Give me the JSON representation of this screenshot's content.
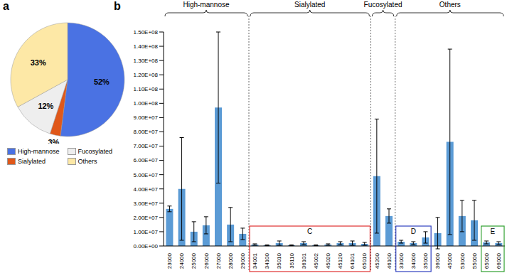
{
  "chart_data": [
    {
      "type": "pie",
      "panel_label": "a",
      "categories": [
        "High-mannose",
        "Sialylated",
        "Fucosylated",
        "Others"
      ],
      "values": [
        52,
        3,
        12,
        33
      ],
      "value_labels": [
        "52%",
        "3%",
        "12%",
        "33%"
      ],
      "colors": [
        "#4a72e3",
        "#e0581a",
        "#eeeeee",
        "#fde8a6"
      ],
      "data_labels": true,
      "legend": "bottom"
    },
    {
      "type": "bar",
      "panel_label": "b",
      "categories": [
        "23000",
        "24000",
        "25000",
        "26000",
        "27000",
        "28000",
        "29000",
        "34001",
        "34100",
        "35010",
        "35110",
        "36101",
        "45002",
        "45020",
        "45120",
        "64101",
        "65010",
        "45200",
        "46100",
        "33000",
        "34000",
        "35000",
        "36000",
        "45000",
        "53000",
        "55000",
        "65000",
        "66000"
      ],
      "values": [
        26000000,
        40000000,
        10000000,
        14500000,
        97000000,
        15000000,
        8500000,
        1000000,
        500000,
        2000000,
        500000,
        2000000,
        500000,
        1000000,
        2000000,
        2000000,
        1500000,
        49000000,
        21000000,
        3000000,
        2000000,
        6000000,
        9000000,
        73000000,
        21000000,
        18000000,
        2500000,
        2000000
      ],
      "errors": [
        2000000,
        36000000,
        7000000,
        6000000,
        53000000,
        12000000,
        4000000,
        500000,
        300000,
        1500000,
        300000,
        1000000,
        300000,
        500000,
        1000000,
        1500000,
        1000000,
        40000000,
        5000000,
        1000000,
        1000000,
        4000000,
        11000000,
        65000000,
        11000000,
        14000000,
        1000000,
        1000000
      ],
      "color": "#5b9bd5",
      "ylim": [
        0,
        150000000
      ],
      "yticks": [
        {
          "value": 0,
          "label": "0.00E+00"
        },
        {
          "value": 10000000,
          "label": "1.00E+07"
        },
        {
          "value": 20000000,
          "label": "2.00E+07"
        },
        {
          "value": 30000000,
          "label": "3.00E+07"
        },
        {
          "value": 40000000,
          "label": "4.00E+07"
        },
        {
          "value": 50000000,
          "label": "5.00E+07"
        },
        {
          "value": 60000000,
          "label": "6.00E+07"
        },
        {
          "value": 70000000,
          "label": "7.00E+07"
        },
        {
          "value": 80000000,
          "label": "8.00E+07"
        },
        {
          "value": 90000000,
          "label": "9.00E+07"
        },
        {
          "value": 100000000,
          "label": "1.00E+08"
        },
        {
          "value": 110000000,
          "label": "1.10E+08"
        },
        {
          "value": 120000000,
          "label": "1.20E+08"
        },
        {
          "value": 130000000,
          "label": "1.30E+08"
        },
        {
          "value": 140000000,
          "label": "1.40E+08"
        },
        {
          "value": 150000000,
          "label": "1.50E+08"
        }
      ],
      "groups": [
        {
          "label": "High-mannose",
          "first": "23000",
          "last": "29000"
        },
        {
          "label": "Sialylated",
          "first": "34001",
          "last": "65010"
        },
        {
          "label": "Fucosylated",
          "first": "45200",
          "last": "46100"
        },
        {
          "label": "Others",
          "first": "33000",
          "last": "66000"
        }
      ],
      "boxes": [
        {
          "label": "C",
          "first": "34001",
          "last": "65010",
          "color": "#e03030"
        },
        {
          "label": "D",
          "first": "33000",
          "last": "35000",
          "color": "#3040c0"
        },
        {
          "label": "E",
          "first": "65000",
          "last": "66000",
          "color": "#30a030"
        }
      ]
    }
  ]
}
